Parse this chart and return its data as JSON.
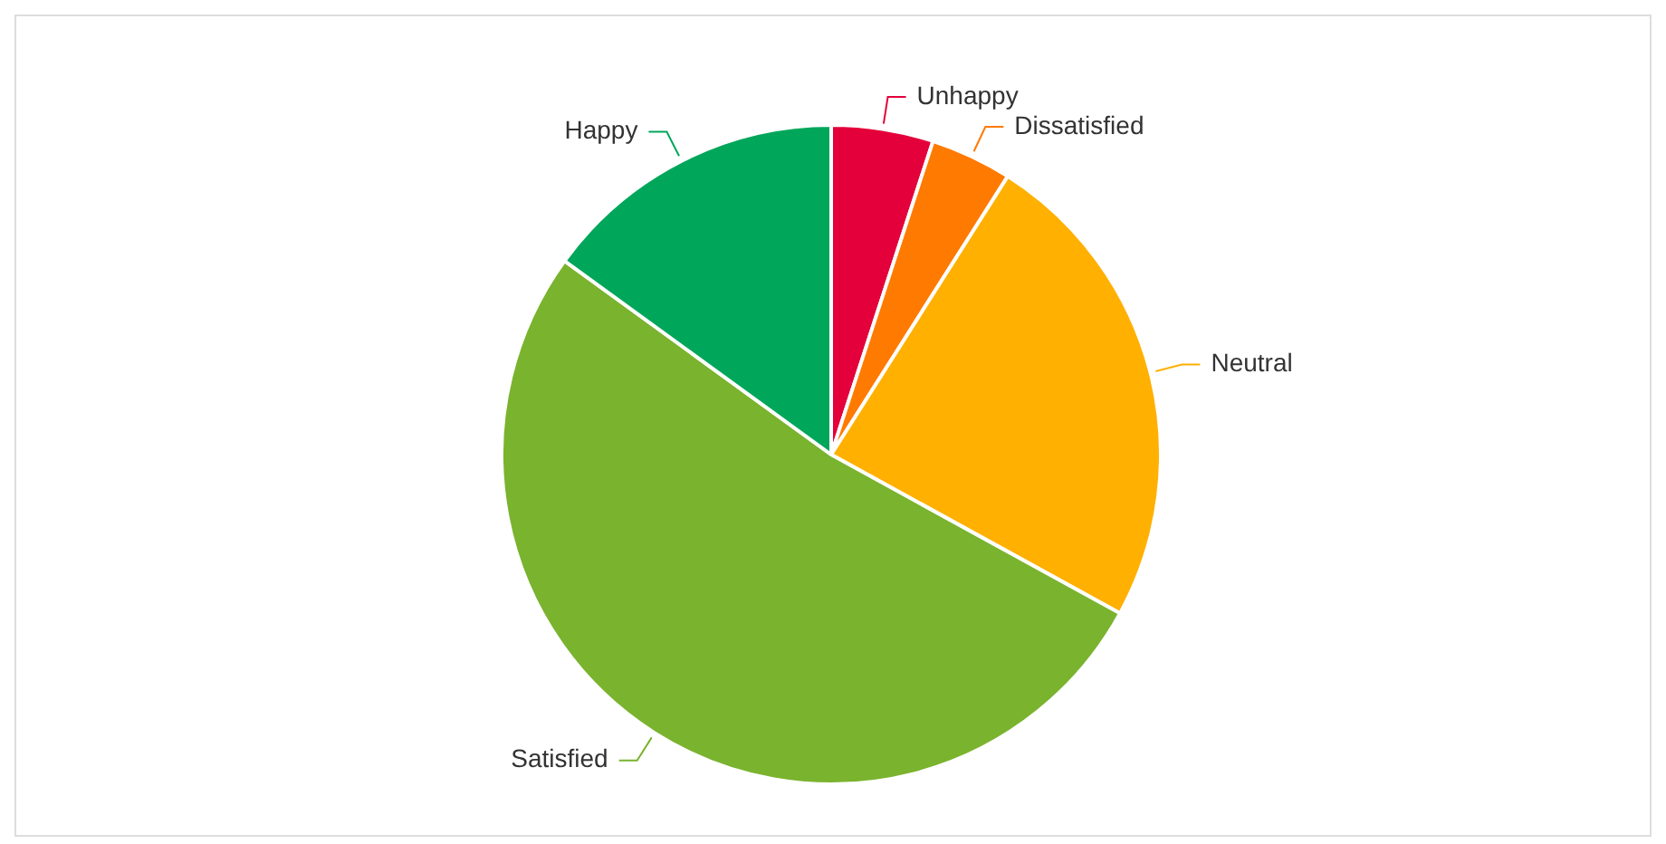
{
  "chart_data": {
    "type": "pie",
    "categories": [
      "Unhappy",
      "Dissatisfied",
      "Neutral",
      "Satisfied",
      "Happy"
    ],
    "values": [
      5,
      4,
      24,
      52,
      15
    ],
    "colors": [
      "#e4003a",
      "#ff7a00",
      "#ffb000",
      "#7ab32e",
      "#00a65a"
    ],
    "legend": false
  }
}
